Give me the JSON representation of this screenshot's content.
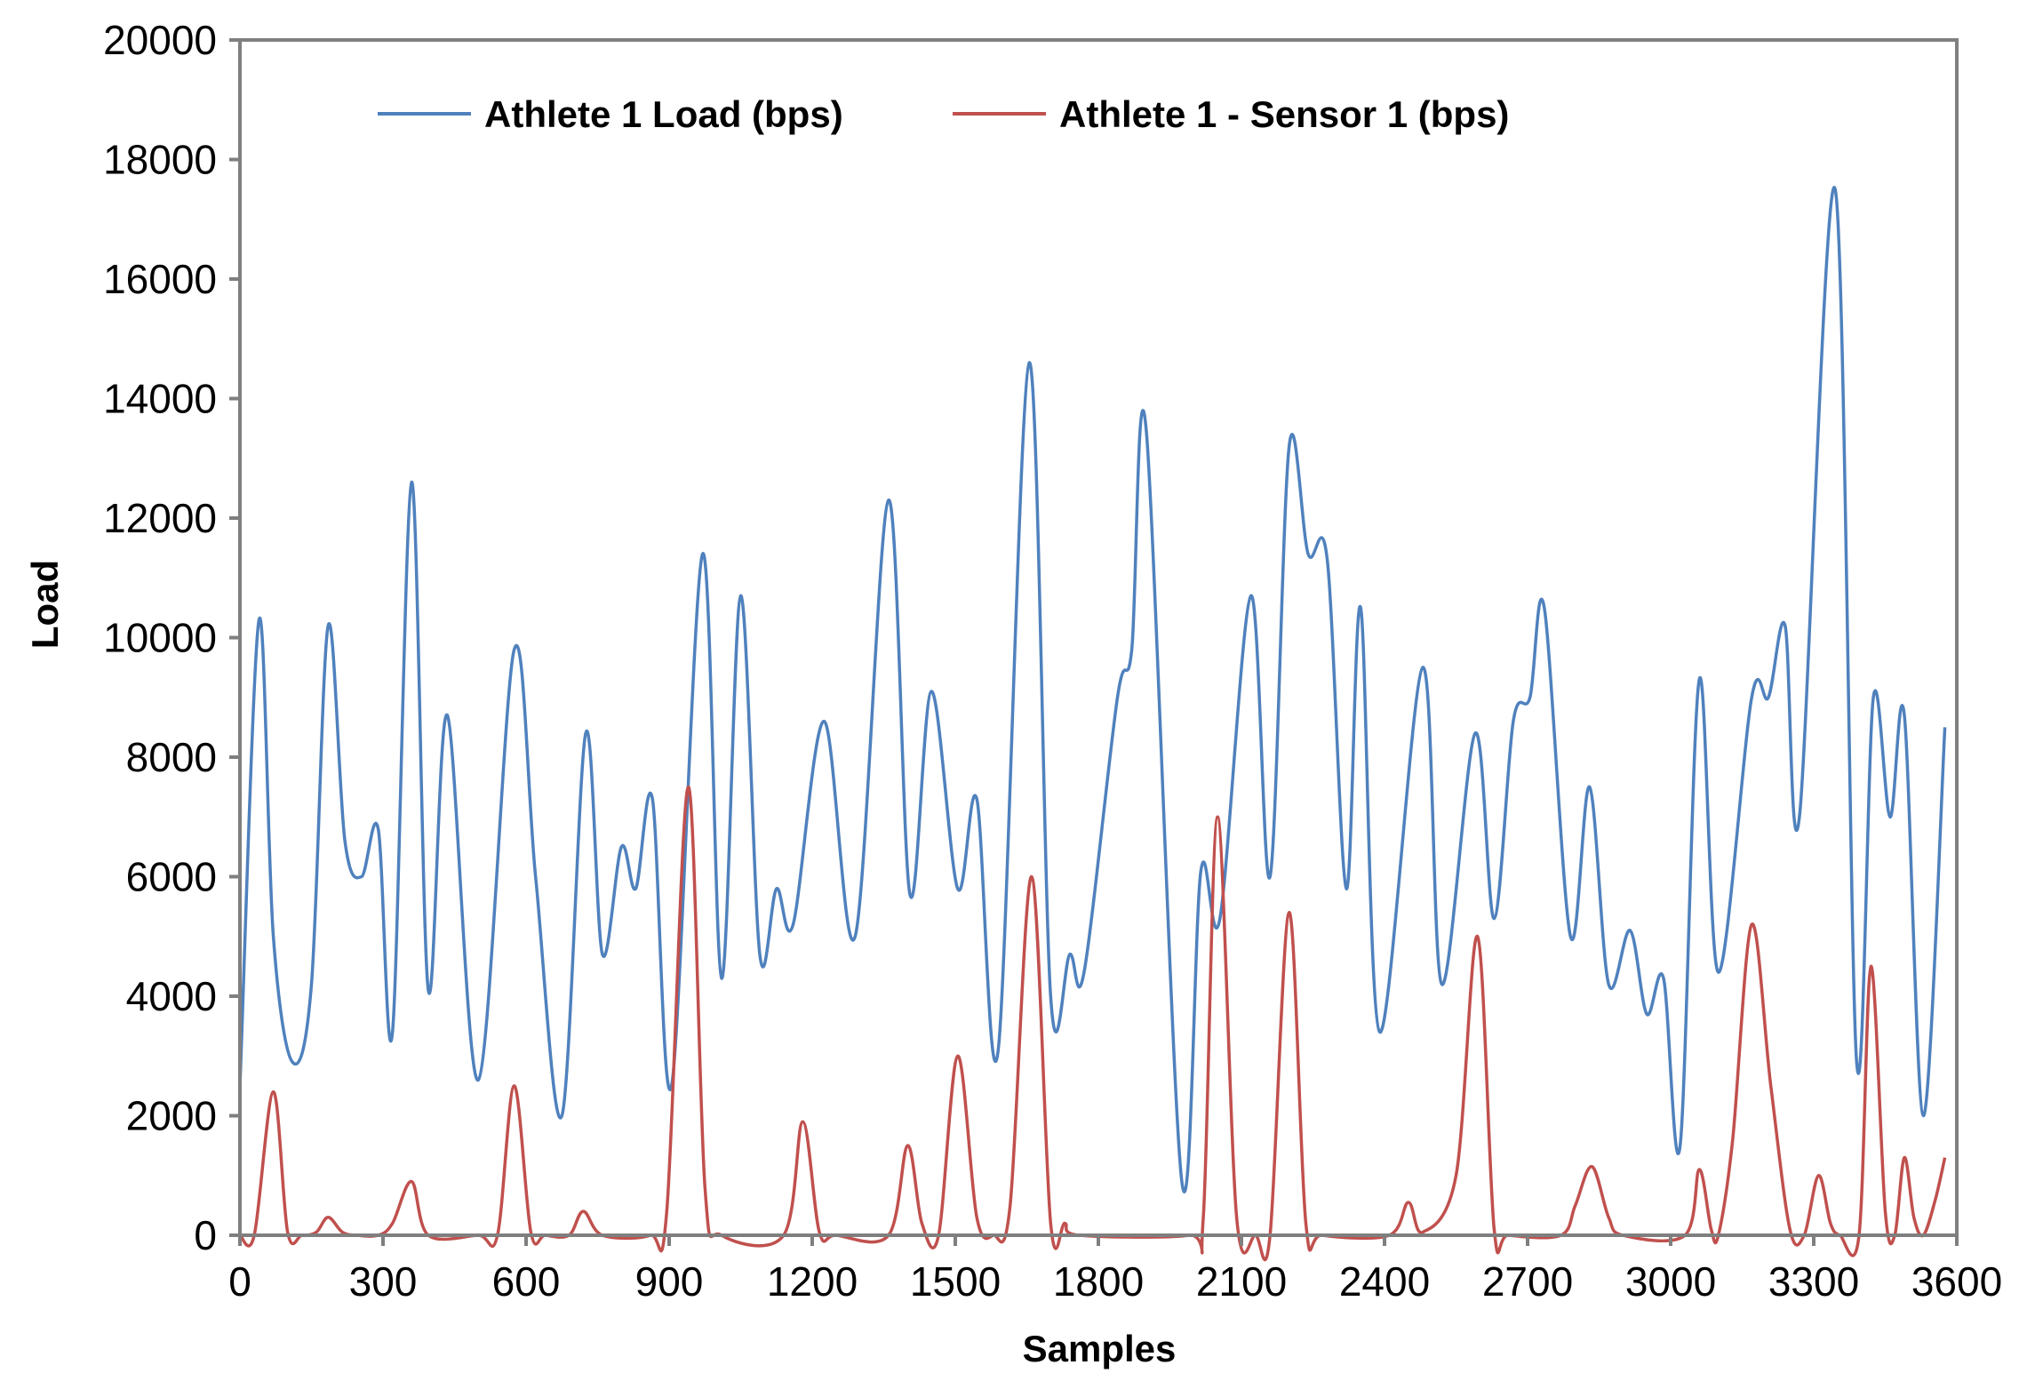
{
  "chart_data": {
    "type": "line",
    "title": "",
    "xlabel": "Samples",
    "ylabel": "Load",
    "xlim": [
      0,
      3600
    ],
    "ylim": [
      0,
      20000
    ],
    "xticks": [
      0,
      300,
      600,
      900,
      1200,
      1500,
      1800,
      2100,
      2400,
      2700,
      3000,
      3300,
      3600
    ],
    "xtick_labels": [
      "0",
      "300",
      "600",
      "900",
      "1200",
      "1500",
      "1800",
      "2100",
      "2400",
      "2700",
      "3000",
      "3300",
      "3600"
    ],
    "yticks": [
      0,
      2000,
      4000,
      6000,
      8000,
      10000,
      12000,
      14000,
      16000,
      18000,
      20000
    ],
    "ytick_labels": [
      "0",
      "2000",
      "4000",
      "6000",
      "8000",
      "10000",
      "12000",
      "14000",
      "16000",
      "18000",
      "20000"
    ],
    "grid": false,
    "legend_position": "top-left",
    "series": [
      {
        "name": "Athlete 1 Load (bps)",
        "color": "#4F81BD",
        "points": [
          [
            0,
            2500
          ],
          [
            40,
            10300
          ],
          [
            70,
            5000
          ],
          [
            110,
            2900
          ],
          [
            150,
            4200
          ],
          [
            185,
            10200
          ],
          [
            220,
            6600
          ],
          [
            255,
            6000
          ],
          [
            290,
            6800
          ],
          [
            320,
            3400
          ],
          [
            360,
            12600
          ],
          [
            395,
            4100
          ],
          [
            435,
            8700
          ],
          [
            500,
            2600
          ],
          [
            575,
            9800
          ],
          [
            620,
            6000
          ],
          [
            675,
            2000
          ],
          [
            725,
            8400
          ],
          [
            760,
            4700
          ],
          [
            800,
            6500
          ],
          [
            830,
            5800
          ],
          [
            865,
            7300
          ],
          [
            905,
            2500
          ],
          [
            970,
            11400
          ],
          [
            1010,
            4300
          ],
          [
            1050,
            10700
          ],
          [
            1090,
            4700
          ],
          [
            1125,
            5800
          ],
          [
            1160,
            5200
          ],
          [
            1225,
            8600
          ],
          [
            1290,
            5000
          ],
          [
            1360,
            12300
          ],
          [
            1405,
            5700
          ],
          [
            1450,
            9100
          ],
          [
            1505,
            5800
          ],
          [
            1545,
            7300
          ],
          [
            1590,
            3100
          ],
          [
            1655,
            14600
          ],
          [
            1700,
            4000
          ],
          [
            1740,
            4700
          ],
          [
            1770,
            4400
          ],
          [
            1840,
            9000
          ],
          [
            1870,
            9800
          ],
          [
            1900,
            13500
          ],
          [
            1975,
            900
          ],
          [
            2015,
            6100
          ],
          [
            2055,
            5300
          ],
          [
            2120,
            10700
          ],
          [
            2160,
            6000
          ],
          [
            2200,
            13200
          ],
          [
            2240,
            11400
          ],
          [
            2280,
            11300
          ],
          [
            2320,
            5800
          ],
          [
            2350,
            10500
          ],
          [
            2390,
            3400
          ],
          [
            2480,
            9500
          ],
          [
            2520,
            4200
          ],
          [
            2590,
            8400
          ],
          [
            2630,
            5300
          ],
          [
            2670,
            8600
          ],
          [
            2705,
            9000
          ],
          [
            2735,
            10500
          ],
          [
            2790,
            5000
          ],
          [
            2830,
            7500
          ],
          [
            2870,
            4200
          ],
          [
            2915,
            5100
          ],
          [
            2950,
            3700
          ],
          [
            2985,
            4300
          ],
          [
            3020,
            1500
          ],
          [
            3060,
            9300
          ],
          [
            3100,
            4400
          ],
          [
            3170,
            9000
          ],
          [
            3205,
            9000
          ],
          [
            3240,
            10200
          ],
          [
            3270,
            7000
          ],
          [
            3345,
            17500
          ],
          [
            3390,
            2900
          ],
          [
            3425,
            9000
          ],
          [
            3460,
            7000
          ],
          [
            3490,
            8700
          ],
          [
            3530,
            2000
          ],
          [
            3575,
            8500
          ]
        ]
      },
      {
        "name": "Athlete 1 - Sensor 1 (bps)",
        "color": "#C0504D",
        "points": [
          [
            0,
            0
          ],
          [
            30,
            0
          ],
          [
            70,
            2400
          ],
          [
            100,
            50
          ],
          [
            130,
            0
          ],
          [
            160,
            50
          ],
          [
            185,
            300
          ],
          [
            215,
            50
          ],
          [
            245,
            0
          ],
          [
            290,
            0
          ],
          [
            320,
            200
          ],
          [
            360,
            900
          ],
          [
            395,
            0
          ],
          [
            500,
            0
          ],
          [
            540,
            0
          ],
          [
            575,
            2500
          ],
          [
            610,
            50
          ],
          [
            640,
            0
          ],
          [
            690,
            0
          ],
          [
            720,
            400
          ],
          [
            760,
            0
          ],
          [
            860,
            0
          ],
          [
            895,
            400
          ],
          [
            940,
            7500
          ],
          [
            975,
            800
          ],
          [
            1010,
            0
          ],
          [
            1140,
            0
          ],
          [
            1180,
            1900
          ],
          [
            1215,
            50
          ],
          [
            1250,
            0
          ],
          [
            1360,
            0
          ],
          [
            1400,
            1500
          ],
          [
            1430,
            200
          ],
          [
            1465,
            0
          ],
          [
            1505,
            3000
          ],
          [
            1545,
            300
          ],
          [
            1580,
            0
          ],
          [
            1615,
            500
          ],
          [
            1660,
            6000
          ],
          [
            1700,
            200
          ],
          [
            1730,
            200
          ],
          [
            1760,
            0
          ],
          [
            1990,
            0
          ],
          [
            2020,
            300
          ],
          [
            2050,
            7000
          ],
          [
            2090,
            300
          ],
          [
            2130,
            0
          ],
          [
            2160,
            0
          ],
          [
            2200,
            5400
          ],
          [
            2235,
            200
          ],
          [
            2270,
            0
          ],
          [
            2410,
            0
          ],
          [
            2450,
            550
          ],
          [
            2480,
            50
          ],
          [
            2550,
            1000
          ],
          [
            2595,
            5000
          ],
          [
            2630,
            100
          ],
          [
            2660,
            0
          ],
          [
            2770,
            0
          ],
          [
            2800,
            500
          ],
          [
            2835,
            1150
          ],
          [
            2870,
            300
          ],
          [
            2900,
            0
          ],
          [
            3030,
            0
          ],
          [
            3060,
            1100
          ],
          [
            3085,
            100
          ],
          [
            3100,
            0
          ],
          [
            3130,
            1600
          ],
          [
            3170,
            5200
          ],
          [
            3210,
            2500
          ],
          [
            3250,
            100
          ],
          [
            3280,
            0
          ],
          [
            3310,
            1000
          ],
          [
            3335,
            200
          ],
          [
            3355,
            0
          ],
          [
            3395,
            0
          ],
          [
            3420,
            4500
          ],
          [
            3450,
            400
          ],
          [
            3470,
            0
          ],
          [
            3490,
            1300
          ],
          [
            3510,
            300
          ],
          [
            3530,
            0
          ],
          [
            3555,
            600
          ],
          [
            3575,
            1300
          ]
        ]
      }
    ]
  }
}
